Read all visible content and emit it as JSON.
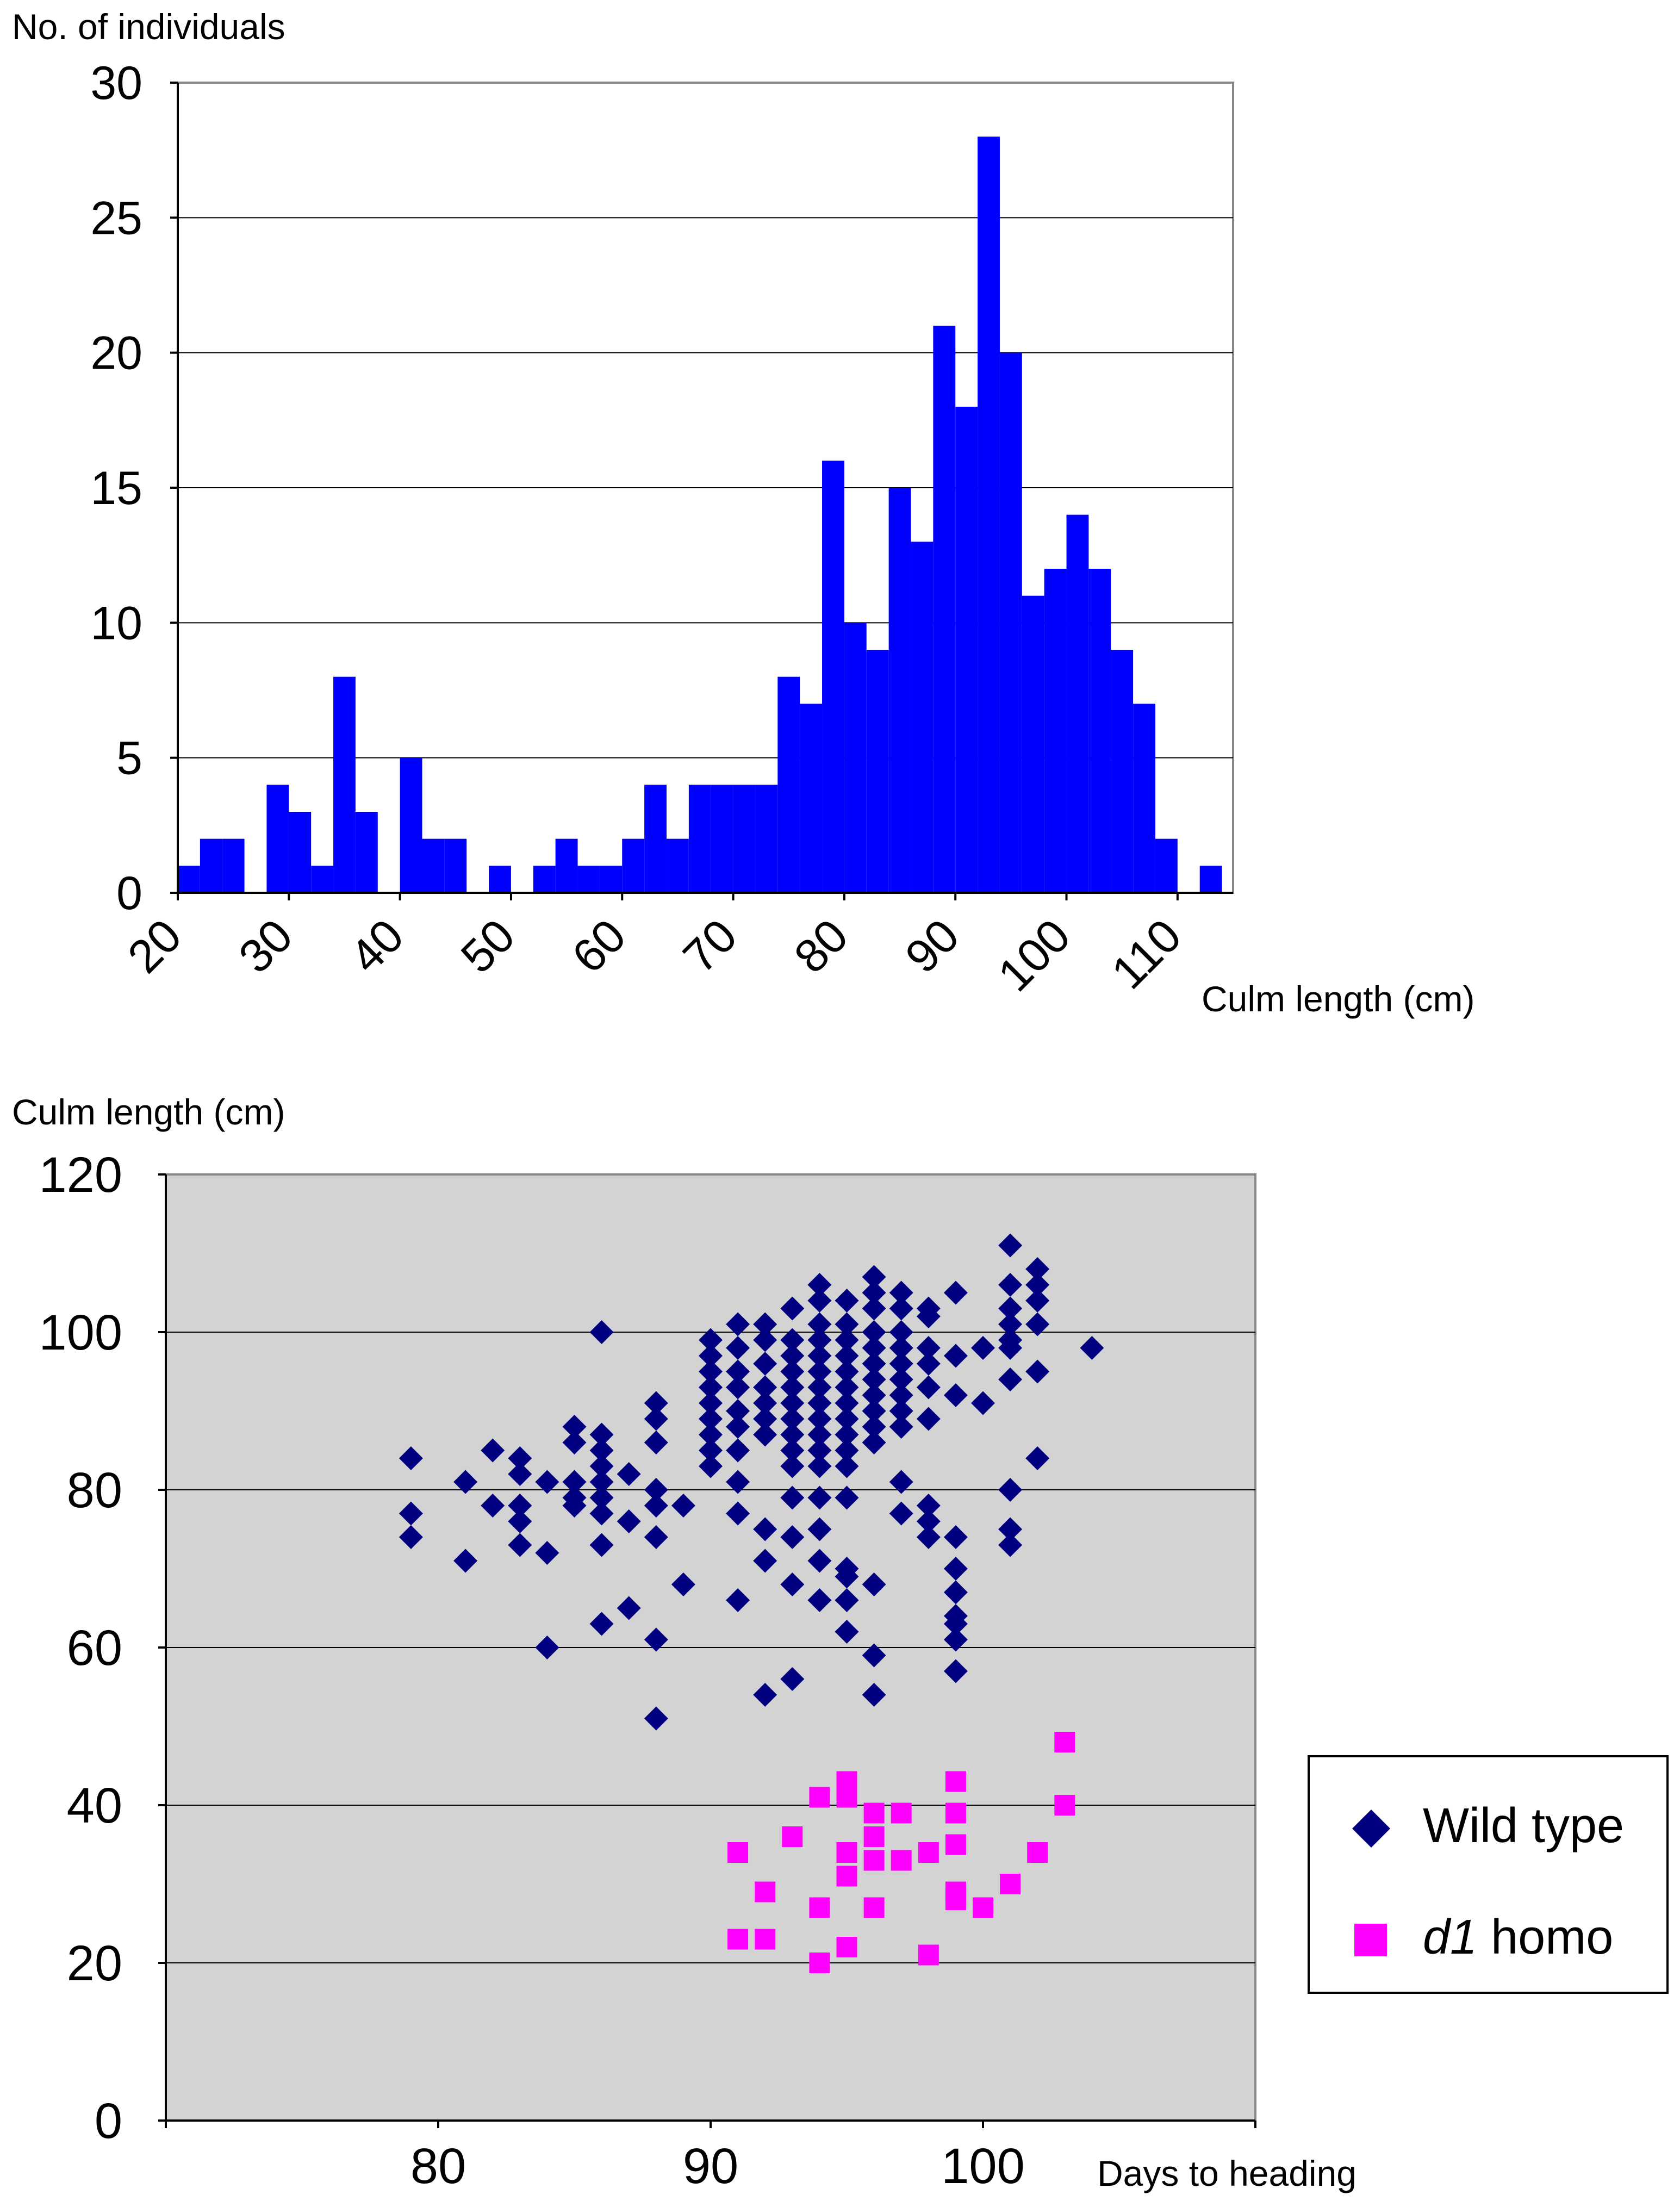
{
  "chart_data": [
    {
      "type": "bar",
      "title": "",
      "ylabel": "No. of individuals",
      "xlabel": "Culm length (cm)",
      "ylim": [
        0,
        30
      ],
      "yticks": [
        "0",
        "5",
        "10",
        "15",
        "20",
        "25",
        "30"
      ],
      "xlim": [
        20,
        115
      ],
      "xticks": [
        "20",
        "30",
        "40",
        "50",
        "60",
        "70",
        "80",
        "90",
        "100",
        "110"
      ],
      "bin_width": 2,
      "bin_starts": [
        20,
        22,
        24,
        26,
        28,
        30,
        32,
        34,
        36,
        38,
        40,
        42,
        44,
        46,
        48,
        50,
        52,
        54,
        56,
        58,
        60,
        62,
        64,
        66,
        68,
        70,
        72,
        74,
        76,
        78,
        80,
        82,
        84,
        86,
        88,
        90,
        92,
        94,
        96,
        98,
        100,
        102,
        104,
        106,
        108,
        110,
        112,
        114
      ],
      "values": [
        1,
        2,
        2,
        0,
        4,
        3,
        1,
        8,
        3,
        0,
        5,
        2,
        2,
        0,
        1,
        0,
        1,
        2,
        1,
        1,
        2,
        4,
        2,
        4,
        4,
        4,
        4,
        8,
        7,
        16,
        10,
        9,
        15,
        13,
        21,
        18,
        28,
        20,
        11,
        12,
        14,
        12,
        9,
        7,
        2,
        0,
        1,
        0
      ],
      "color": "#0000ff",
      "grid": true
    },
    {
      "type": "scatter",
      "title": "",
      "ylabel": "Culm length (cm)",
      "xlabel": "Days to heading",
      "xlim": [
        70,
        110
      ],
      "ylim": [
        0,
        120
      ],
      "xticks": [
        "80",
        "90",
        "100"
      ],
      "yticks": [
        "0",
        "20",
        "40",
        "60",
        "80",
        "100",
        "120"
      ],
      "background": "#d3d3d3",
      "grid": true,
      "legend": {
        "placement": "right"
      },
      "series": [
        {
          "name": "Wild type",
          "marker": "diamond",
          "color": "#000080",
          "points": [
            [
              79,
              84
            ],
            [
              79,
              77
            ],
            [
              79,
              74
            ],
            [
              81,
              81
            ],
            [
              81,
              71
            ],
            [
              82,
              85
            ],
            [
              82,
              78
            ],
            [
              83,
              84
            ],
            [
              83,
              82
            ],
            [
              83,
              78
            ],
            [
              83,
              76
            ],
            [
              83,
              73
            ],
            [
              84,
              81
            ],
            [
              84,
              72
            ],
            [
              84,
              60
            ],
            [
              85,
              88
            ],
            [
              85,
              86
            ],
            [
              85,
              81
            ],
            [
              85,
              79
            ],
            [
              85,
              78
            ],
            [
              86,
              100
            ],
            [
              86,
              87
            ],
            [
              86,
              85
            ],
            [
              86,
              83
            ],
            [
              86,
              81
            ],
            [
              86,
              79
            ],
            [
              86,
              77
            ],
            [
              86,
              73
            ],
            [
              86,
              63
            ],
            [
              87,
              82
            ],
            [
              87,
              76
            ],
            [
              87,
              65
            ],
            [
              88,
              91
            ],
            [
              88,
              89
            ],
            [
              88,
              86
            ],
            [
              88,
              80
            ],
            [
              88,
              78
            ],
            [
              88,
              74
            ],
            [
              88,
              61
            ],
            [
              88,
              51
            ],
            [
              89,
              78
            ],
            [
              89,
              68
            ],
            [
              90,
              99
            ],
            [
              90,
              97
            ],
            [
              90,
              95
            ],
            [
              90,
              93
            ],
            [
              90,
              91
            ],
            [
              90,
              89
            ],
            [
              90,
              87
            ],
            [
              90,
              85
            ],
            [
              90,
              83
            ],
            [
              91,
              101
            ],
            [
              91,
              98
            ],
            [
              91,
              95
            ],
            [
              91,
              93
            ],
            [
              91,
              90
            ],
            [
              91,
              88
            ],
            [
              91,
              85
            ],
            [
              91,
              81
            ],
            [
              91,
              77
            ],
            [
              91,
              66
            ],
            [
              92,
              101
            ],
            [
              92,
              99
            ],
            [
              92,
              96
            ],
            [
              92,
              93
            ],
            [
              92,
              91
            ],
            [
              92,
              89
            ],
            [
              92,
              87
            ],
            [
              92,
              75
            ],
            [
              92,
              71
            ],
            [
              92,
              54
            ],
            [
              93,
              103
            ],
            [
              93,
              99
            ],
            [
              93,
              97
            ],
            [
              93,
              95
            ],
            [
              93,
              93
            ],
            [
              93,
              91
            ],
            [
              93,
              89
            ],
            [
              93,
              87
            ],
            [
              93,
              85
            ],
            [
              93,
              83
            ],
            [
              93,
              79
            ],
            [
              93,
              74
            ],
            [
              93,
              68
            ],
            [
              93,
              56
            ],
            [
              94,
              106
            ],
            [
              94,
              104
            ],
            [
              94,
              101
            ],
            [
              94,
              99
            ],
            [
              94,
              97
            ],
            [
              94,
              95
            ],
            [
              94,
              93
            ],
            [
              94,
              91
            ],
            [
              94,
              89
            ],
            [
              94,
              87
            ],
            [
              94,
              85
            ],
            [
              94,
              83
            ],
            [
              94,
              79
            ],
            [
              94,
              75
            ],
            [
              94,
              71
            ],
            [
              94,
              66
            ],
            [
              95,
              104
            ],
            [
              95,
              101
            ],
            [
              95,
              99
            ],
            [
              95,
              97
            ],
            [
              95,
              95
            ],
            [
              95,
              93
            ],
            [
              95,
              91
            ],
            [
              95,
              89
            ],
            [
              95,
              87
            ],
            [
              95,
              85
            ],
            [
              95,
              83
            ],
            [
              95,
              79
            ],
            [
              95,
              70
            ],
            [
              95,
              69
            ],
            [
              95,
              66
            ],
            [
              95,
              62
            ],
            [
              96,
              107
            ],
            [
              96,
              105
            ],
            [
              96,
              103
            ],
            [
              96,
              100
            ],
            [
              96,
              98
            ],
            [
              96,
              96
            ],
            [
              96,
              94
            ],
            [
              96,
              92
            ],
            [
              96,
              90
            ],
            [
              96,
              88
            ],
            [
              96,
              86
            ],
            [
              96,
              68
            ],
            [
              96,
              59
            ],
            [
              96,
              54
            ],
            [
              97,
              105
            ],
            [
              97,
              103
            ],
            [
              97,
              100
            ],
            [
              97,
              98
            ],
            [
              97,
              96
            ],
            [
              97,
              94
            ],
            [
              97,
              92
            ],
            [
              97,
              90
            ],
            [
              97,
              88
            ],
            [
              97,
              81
            ],
            [
              97,
              77
            ],
            [
              98,
              103
            ],
            [
              98,
              102
            ],
            [
              98,
              98
            ],
            [
              98,
              96
            ],
            [
              98,
              93
            ],
            [
              98,
              89
            ],
            [
              98,
              78
            ],
            [
              98,
              76
            ],
            [
              98,
              74
            ],
            [
              99,
              105
            ],
            [
              99,
              97
            ],
            [
              99,
              92
            ],
            [
              99,
              74
            ],
            [
              99,
              70
            ],
            [
              99,
              67
            ],
            [
              99,
              64
            ],
            [
              99,
              63
            ],
            [
              99,
              61
            ],
            [
              99,
              57
            ],
            [
              100,
              98
            ],
            [
              100,
              91
            ],
            [
              101,
              111
            ],
            [
              101,
              106
            ],
            [
              101,
              103
            ],
            [
              101,
              101
            ],
            [
              101,
              99
            ],
            [
              101,
              98
            ],
            [
              101,
              94
            ],
            [
              101,
              80
            ],
            [
              101,
              75
            ],
            [
              101,
              73
            ],
            [
              102,
              108
            ],
            [
              102,
              106
            ],
            [
              102,
              104
            ],
            [
              102,
              101
            ],
            [
              102,
              95
            ],
            [
              102,
              84
            ],
            [
              104,
              98
            ]
          ]
        },
        {
          "name": "d1 homo",
          "name_italic": "d1",
          "name_rest": " homo",
          "marker": "square",
          "color": "#ff00ff",
          "points": [
            [
              91,
              34
            ],
            [
              91,
              23
            ],
            [
              92,
              29
            ],
            [
              92,
              23
            ],
            [
              93,
              36
            ],
            [
              94,
              41
            ],
            [
              94,
              27
            ],
            [
              94,
              20
            ],
            [
              95,
              43
            ],
            [
              95,
              41
            ],
            [
              95,
              34
            ],
            [
              95,
              31
            ],
            [
              95,
              22
            ],
            [
              96,
              39
            ],
            [
              96,
              36
            ],
            [
              96,
              33
            ],
            [
              96,
              27
            ],
            [
              97,
              39
            ],
            [
              97,
              33
            ],
            [
              98,
              34
            ],
            [
              98,
              21
            ],
            [
              99,
              43
            ],
            [
              99,
              39
            ],
            [
              99,
              35
            ],
            [
              99,
              29
            ],
            [
              99,
              28
            ],
            [
              100,
              27
            ],
            [
              101,
              30
            ],
            [
              102,
              34
            ],
            [
              103,
              48
            ],
            [
              103,
              40
            ]
          ]
        }
      ]
    }
  ]
}
